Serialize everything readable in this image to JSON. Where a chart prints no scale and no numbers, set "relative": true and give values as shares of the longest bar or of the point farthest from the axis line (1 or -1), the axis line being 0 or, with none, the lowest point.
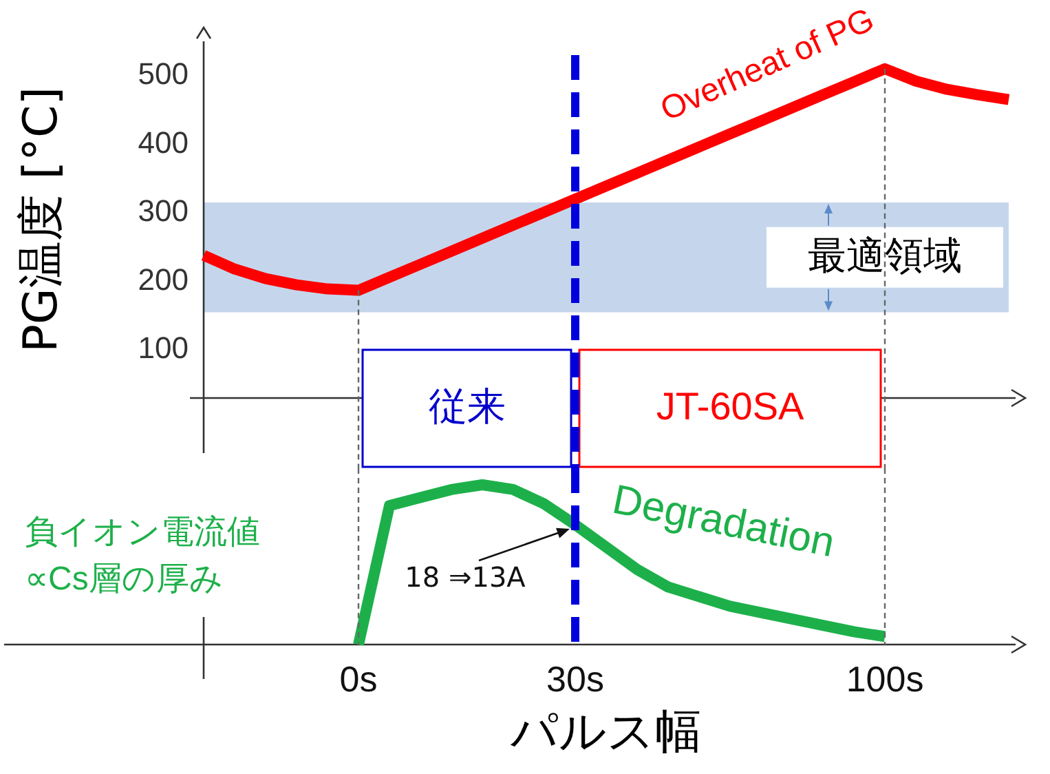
{
  "chart_data": [
    {
      "type": "line",
      "ylabel": "PG温度 [°C]",
      "categories": [
        null,
        null,
        null,
        null,
        null,
        "0s",
        null,
        null,
        null,
        null,
        null,
        null,
        "30s",
        null,
        null,
        null,
        null,
        null,
        null,
        null,
        null,
        null,
        "100s",
        null,
        null,
        null,
        null
      ],
      "series": [
        {
          "color": "#ff0000",
          "values": [
            238,
            218,
            204,
            195,
            189,
            187,
            206,
            225,
            244,
            263,
            282,
            301,
            320,
            339,
            358,
            377,
            396,
            415,
            434,
            453,
            472,
            491,
            510,
            492,
            480,
            472,
            465
          ]
        }
      ],
      "ylim": [
        30,
        550
      ],
      "yticks": [
        100,
        200,
        300,
        400,
        500
      ],
      "bands": [
        {
          "axis": "y",
          "from": 155,
          "to": 315,
          "label": "最適領域",
          "color": "#c5d6ec"
        },
        {
          "axis": "x",
          "from": "0s",
          "to": "30s",
          "label": "従来",
          "color": "#ffffff"
        },
        {
          "axis": "x",
          "from": "30s",
          "to": "100s",
          "label": "JT-60SA",
          "color": "#ffffff"
        }
      ],
      "ref_lines": [
        {
          "axis": "x",
          "value": "30s",
          "color": "#0000dd",
          "line_style": "dashed"
        },
        {
          "axis": "x",
          "value": "0s",
          "color": "#666666",
          "line_style": "dotted"
        },
        {
          "axis": "x",
          "value": "100s",
          "color": "#666666",
          "line_style": "dotted"
        }
      ],
      "annotations": [
        "Overheat of PG"
      ],
      "marker": "none",
      "line_style": "solid",
      "tick_labels": "y"
    },
    {
      "type": "line",
      "relative": true,
      "xlabel": "パルス幅",
      "ylabel": "負イオン電流値\n∝Cs層の厚み",
      "categories": [
        null,
        null,
        null,
        null,
        null,
        "0s",
        null,
        null,
        null,
        null,
        null,
        null,
        "30s",
        null,
        null,
        null,
        null,
        null,
        null,
        null,
        null,
        null,
        "100s",
        null,
        null,
        null,
        null
      ],
      "series": [
        {
          "color": "#1db04a",
          "values": [
            null,
            null,
            null,
            null,
            null,
            0,
            0.87,
            0.92,
            0.97,
            1.0,
            0.97,
            0.88,
            0.75,
            0.61,
            0.47,
            0.36,
            0.3,
            0.24,
            0.2,
            0.16,
            0.12,
            0.08,
            0.05,
            null,
            null,
            null,
            null
          ]
        }
      ],
      "ref_lines": [
        {
          "axis": "x",
          "value": "30s",
          "color": "#0000dd",
          "line_style": "dashed"
        },
        {
          "axis": "x",
          "value": "0s",
          "color": "#666666",
          "line_style": "dotted"
        },
        {
          "axis": "x",
          "value": "100s",
          "color": "#666666",
          "line_style": "dotted"
        }
      ],
      "annotations": [
        "Degradation",
        {
          "text": "18 ⇒13A",
          "x": "30s",
          "y": 0.75
        }
      ],
      "marker": "none",
      "line_style": "solid",
      "tick_labels": "x"
    }
  ]
}
